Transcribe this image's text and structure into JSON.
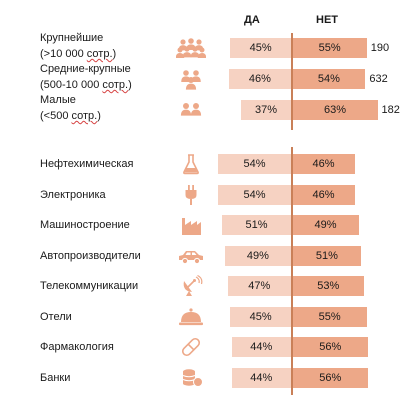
{
  "chart_data": {
    "type": "bar",
    "stacked": true,
    "orientation": "horizontal",
    "series_labels": [
      "ДА",
      "НЕТ"
    ],
    "colors": {
      "yes": "#f6d2c2",
      "no": "#eda888",
      "axis": "#c98058",
      "icon": "#eda888"
    },
    "groups": [
      {
        "name": "size",
        "rows": [
          {
            "label_lines": [
              "Крупнейшие",
              "(>10 000 сотр.)"
            ],
            "underline": "сотр.",
            "yes": 45,
            "no": 55,
            "count": "190",
            "icon": "people-group-large-icon"
          },
          {
            "label_lines": [
              "Средние-крупные",
              "(500-10 000 сотр.)"
            ],
            "underline": "сотр.",
            "yes": 46,
            "no": 54,
            "count": "632",
            "icon": "people-group-medium-icon"
          },
          {
            "label_lines": [
              "Малые",
              "(<500 сотр.)"
            ],
            "underline": "сотр.",
            "yes": 37,
            "no": 63,
            "count": "182",
            "icon": "people-group-small-icon"
          }
        ]
      },
      {
        "name": "industry",
        "rows": [
          {
            "label_lines": [
              "Нефтехимическая"
            ],
            "yes": 54,
            "no": 46,
            "icon": "flask-icon"
          },
          {
            "label_lines": [
              "Электроника"
            ],
            "yes": 54,
            "no": 46,
            "icon": "plug-icon"
          },
          {
            "label_lines": [
              "Машиностроение"
            ],
            "yes": 51,
            "no": 49,
            "icon": "factory-icon"
          },
          {
            "label_lines": [
              "Автопроизводители"
            ],
            "yes": 49,
            "no": 51,
            "icon": "car-icon"
          },
          {
            "label_lines": [
              "Телекоммуникации"
            ],
            "yes": 47,
            "no": 53,
            "icon": "satellite-dish-icon"
          },
          {
            "label_lines": [
              "Отели"
            ],
            "yes": 45,
            "no": 55,
            "icon": "cloche-icon"
          },
          {
            "label_lines": [
              "Фармакология"
            ],
            "yes": 44,
            "no": 56,
            "icon": "pill-icon"
          },
          {
            "label_lines": [
              "Банки"
            ],
            "yes": 44,
            "no": 56,
            "icon": "coins-icon"
          }
        ]
      }
    ]
  }
}
